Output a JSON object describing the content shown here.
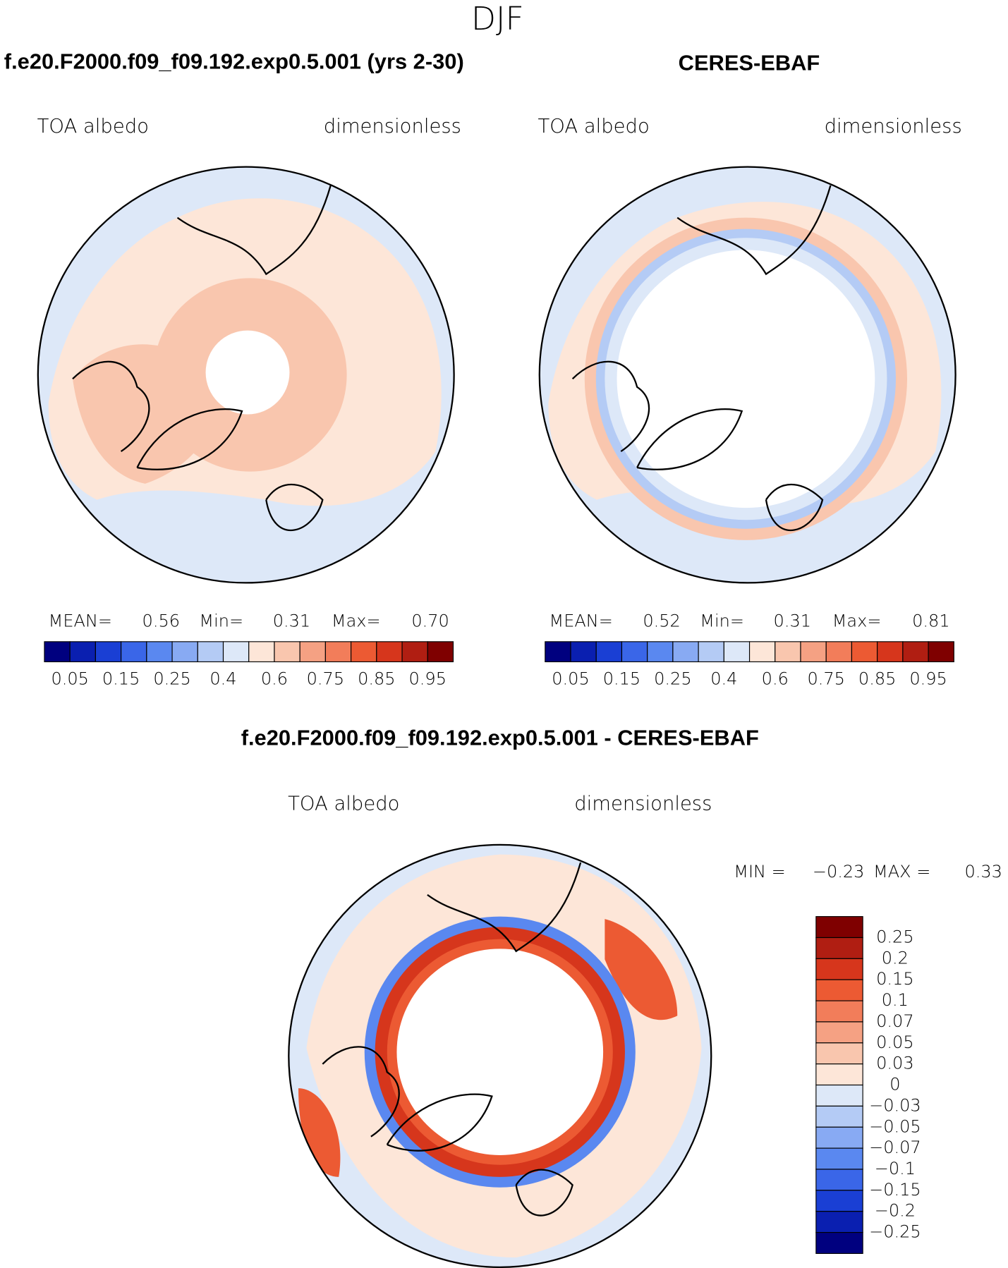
{
  "title": "DJF",
  "panels": [
    {
      "heading": "f.e20.F2000.f09_f09.192.exp0.5.001 (yrs 2-30)",
      "variable": "TOA albedo",
      "units": "dimensionless",
      "stats": [
        "MEAN=",
        "0.56",
        "Min=",
        "0.31",
        "Max=",
        "0.70"
      ],
      "colorbar": {
        "colors": [
          "#00007f",
          "#0a1fb0",
          "#1a3fd4",
          "#3a66e8",
          "#5a88f0",
          "#88aaf3",
          "#b4cbf5",
          "#dde8f8",
          "#fde6d8",
          "#f9c6ae",
          "#f5a183",
          "#f27d5a",
          "#ec5a33",
          "#d6361c",
          "#b01e12",
          "#7f0000"
        ],
        "labels": [
          "0.05",
          "0.15",
          "0.25",
          "0.4",
          "0.6",
          "0.75",
          "0.85",
          "0.95"
        ]
      }
    },
    {
      "heading": "CERES-EBAF",
      "variable": "TOA albedo",
      "units": "dimensionless",
      "stats": [
        "MEAN=",
        "0.52",
        "Min=",
        "0.31",
        "Max=",
        "0.81"
      ],
      "colorbar": {
        "colors": [
          "#00007f",
          "#0a1fb0",
          "#1a3fd4",
          "#3a66e8",
          "#5a88f0",
          "#88aaf3",
          "#b4cbf5",
          "#dde8f8",
          "#fde6d8",
          "#f9c6ae",
          "#f5a183",
          "#f27d5a",
          "#ec5a33",
          "#d6361c",
          "#b01e12",
          "#7f0000"
        ],
        "labels": [
          "0.05",
          "0.15",
          "0.25",
          "0.4",
          "0.6",
          "0.75",
          "0.85",
          "0.95"
        ]
      }
    }
  ],
  "difference": {
    "heading": "f.e20.F2000.f09_f09.192.exp0.5.001 - CERES-EBAF",
    "variable": "TOA albedo",
    "units": "dimensionless",
    "stats": [
      "MIN =",
      "−0.23",
      "MAX =",
      "0.33"
    ],
    "colorbar": {
      "colors": [
        "#7f0000",
        "#b01e12",
        "#d6361c",
        "#ec5a33",
        "#f27d5a",
        "#f5a183",
        "#f9c6ae",
        "#fde6d8",
        "#dde8f8",
        "#b4cbf5",
        "#88aaf3",
        "#5a88f0",
        "#3a66e8",
        "#1a3fd4",
        "#0a1fb0",
        "#00007f"
      ],
      "labels": [
        "0.25",
        "0.2",
        "0.15",
        "0.1",
        "0.07",
        "0.05",
        "0.03",
        "0",
        "−0.03",
        "−0.05",
        "−0.07",
        "−0.1",
        "−0.15",
        "−0.2",
        "−0.25"
      ]
    }
  }
}
